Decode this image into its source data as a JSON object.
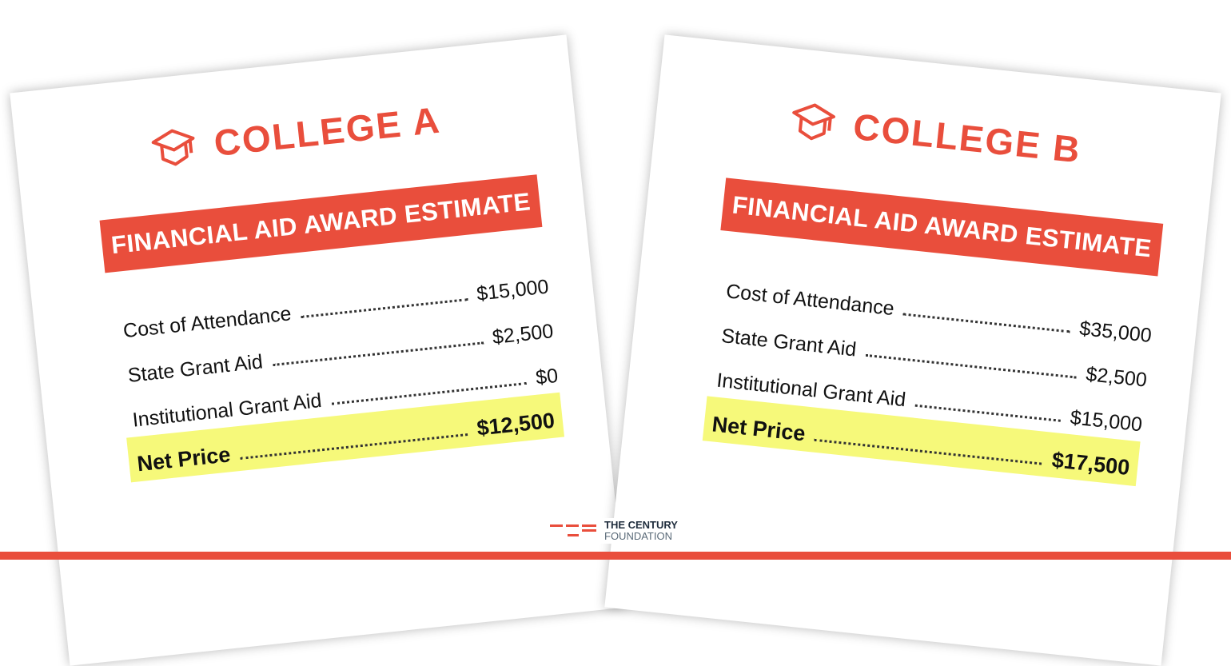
{
  "colors": {
    "accent": "#e94e3c",
    "highlight": "#f6f97a"
  },
  "cards": [
    {
      "title": "COLLEGE A",
      "icon": "graduation-cap-icon",
      "banner": "FINANCIAL AID AWARD ESTIMATE",
      "rows": [
        {
          "label": "Cost of Attendance",
          "value": "$15,000"
        },
        {
          "label": "State Grant Aid",
          "value": "$2,500"
        },
        {
          "label": "Institutional Grant Aid",
          "value": "$0"
        }
      ],
      "net": {
        "label": "Net Price",
        "value": "$12,500"
      }
    },
    {
      "title": "COLLEGE B",
      "icon": "graduation-cap-icon",
      "banner": "FINANCIAL AID AWARD ESTIMATE",
      "rows": [
        {
          "label": "Cost of Attendance",
          "value": "$35,000"
        },
        {
          "label": "State Grant Aid",
          "value": "$2,500"
        },
        {
          "label": "Institutional Grant Aid",
          "value": "$15,000"
        }
      ],
      "net": {
        "label": "Net Price",
        "value": "$17,500"
      }
    }
  ],
  "logo": {
    "line1": "THE CENTURY",
    "line2": "FOUNDATION"
  }
}
